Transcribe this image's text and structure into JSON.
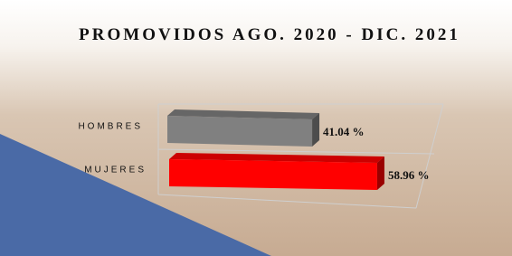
{
  "chart_data": {
    "type": "bar3d",
    "orientation": "horizontal",
    "title": "PROMOVIDOS AGO. 2020 - DIC. 2021",
    "categories": [
      "HOMBRES",
      "MUJERES"
    ],
    "values": [
      41.04,
      58.96
    ],
    "value_labels": [
      "41.04 %",
      "58.96 %"
    ],
    "colors": [
      "#808080",
      "#ff0000"
    ]
  }
}
